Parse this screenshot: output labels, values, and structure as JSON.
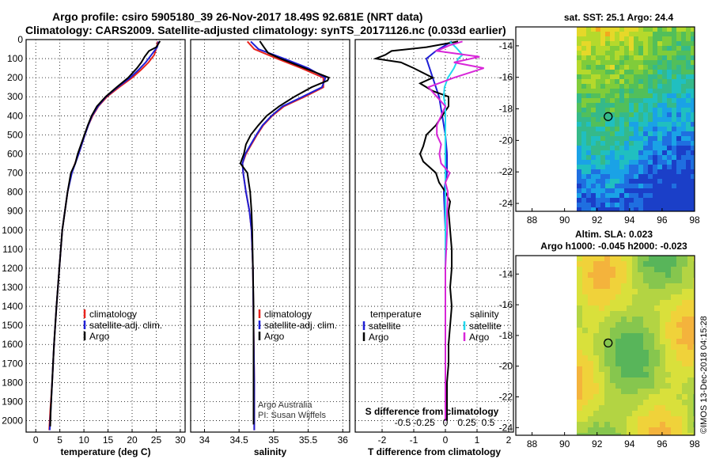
{
  "header": {
    "line1": "Argo profile: csiro 5905180_39 26-Nov-2017 18.49S 92.681E (NRT data)",
    "line2": "Climatology: CARS2009. Satellite-adjusted climatology: synTS_20171126.nc (0.033d earlier)"
  },
  "colors": {
    "climatology": "#e8231c",
    "satellite": "#1f1fd6",
    "argo": "#000000",
    "sat_salinity": "#22d8ee",
    "argo_salinity_diff": "#d826d8"
  },
  "depth_ticks": [
    "0",
    "100",
    "200",
    "300",
    "400",
    "500",
    "600",
    "700",
    "800",
    "900",
    "1000",
    "1100",
    "1200",
    "1300",
    "1400",
    "1500",
    "1600",
    "1700",
    "1800",
    "1900",
    "2000"
  ],
  "chart_data": [
    {
      "type": "line",
      "id": "temperature",
      "xlabel": "temperature (deg C)",
      "xlim": [
        -2,
        31
      ],
      "ylim": [
        2060,
        0
      ],
      "xticks": [
        "0",
        "5",
        "10",
        "15",
        "20",
        "25",
        "30"
      ],
      "legend": {
        "climatology": "climatology",
        "satellite": "satellite-adj. clim.",
        "argo": "Argo"
      },
      "series": [
        {
          "name": "climatology",
          "depth": [
            10,
            40,
            80,
            120,
            160,
            200,
            250,
            300,
            350,
            400,
            450,
            500,
            600,
            700,
            800,
            1000,
            1200,
            1400,
            1600,
            1800,
            1950,
            2050
          ],
          "values": [
            25.3,
            25.1,
            24.6,
            23.4,
            21.8,
            20.0,
            17.3,
            14.8,
            13.0,
            11.8,
            10.9,
            10.2,
            8.9,
            7.4,
            6.6,
            5.5,
            4.9,
            4.3,
            3.8,
            3.4,
            3.0,
            2.8
          ]
        },
        {
          "name": "satellite",
          "depth": [
            10,
            40,
            80,
            120,
            160,
            200,
            250,
            300,
            350,
            400,
            450,
            500,
            600,
            700,
            800,
            1000,
            1200,
            1400,
            1600,
            1800,
            1950,
            2050
          ],
          "values": [
            25.5,
            25.2,
            24.0,
            22.8,
            21.3,
            19.6,
            17.0,
            14.6,
            12.9,
            11.7,
            10.9,
            10.2,
            8.9,
            7.5,
            6.6,
            5.5,
            4.9,
            4.3,
            3.8,
            3.4,
            3.1,
            2.9
          ]
        },
        {
          "name": "argo",
          "depth": [
            8,
            40,
            60,
            90,
            120,
            150,
            200,
            250,
            300,
            350,
            400,
            450,
            500,
            600,
            650,
            700,
            800,
            1000,
            1200,
            1400,
            1600,
            1800,
            1950,
            2030
          ],
          "values": [
            25.8,
            25.0,
            23.5,
            22.6,
            21.9,
            21.0,
            19.2,
            16.8,
            14.5,
            12.7,
            11.6,
            10.8,
            10.1,
            8.7,
            8.2,
            7.3,
            6.6,
            5.5,
            4.9,
            4.3,
            3.8,
            3.4,
            3.1,
            3.0
          ]
        }
      ]
    },
    {
      "type": "line",
      "id": "salinity",
      "xlabel": "salinity",
      "xlim": [
        33.8,
        36.1
      ],
      "ylim": [
        2060,
        0
      ],
      "xticks": [
        "34",
        "34.5",
        "35",
        "35.5",
        "36"
      ],
      "legend": {
        "climatology": "climatology",
        "satellite": "satellite-adj. clim.",
        "argo": "Argo"
      },
      "annotation": [
        "Argo Australia",
        "PI: Susan Wijffels"
      ],
      "series": [
        {
          "name": "climatology",
          "depth": [
            10,
            50,
            100,
            150,
            200,
            250,
            300,
            350,
            400,
            450,
            500,
            550,
            600,
            650,
            700,
            800,
            900,
            1000,
            1200,
            1500,
            1800,
            2050
          ],
          "values": [
            34.62,
            34.72,
            35.05,
            35.4,
            35.72,
            35.72,
            35.45,
            35.15,
            34.98,
            34.85,
            34.76,
            34.68,
            34.6,
            34.55,
            34.56,
            34.6,
            34.65,
            34.68,
            34.7,
            34.71,
            34.72,
            34.72
          ]
        },
        {
          "name": "satellite",
          "depth": [
            10,
            50,
            100,
            150,
            200,
            250,
            300,
            350,
            400,
            450,
            500,
            550,
            600,
            650,
            700,
            800,
            900,
            1000,
            1200,
            1500,
            1800,
            2050
          ],
          "values": [
            34.67,
            34.78,
            35.15,
            35.5,
            35.75,
            35.7,
            35.42,
            35.13,
            34.97,
            34.84,
            34.75,
            34.67,
            34.59,
            34.55,
            34.56,
            34.6,
            34.65,
            34.68,
            34.7,
            34.71,
            34.72,
            34.72
          ]
        },
        {
          "name": "argo",
          "depth": [
            8,
            40,
            70,
            100,
            150,
            200,
            215,
            250,
            300,
            350,
            400,
            450,
            500,
            550,
            600,
            650,
            700,
            750,
            800,
            900,
            1000,
            1200,
            1400,
            1600,
            1800,
            2020
          ],
          "values": [
            34.8,
            34.86,
            34.92,
            35.1,
            35.45,
            35.8,
            35.78,
            35.55,
            35.3,
            35.08,
            34.9,
            34.78,
            34.67,
            34.6,
            34.57,
            34.52,
            34.62,
            34.64,
            34.66,
            34.68,
            34.69,
            34.7,
            34.71,
            34.71,
            34.71,
            34.71
          ]
        }
      ]
    },
    {
      "type": "line",
      "id": "difference",
      "xlabel": "T difference from climatology",
      "xlim": [
        -2.85,
        2.15
      ],
      "ylim": [
        2060,
        0
      ],
      "xticks": [
        "-2",
        "-1",
        "0",
        "1",
        "2"
      ],
      "sxlabel": "S difference from climatology",
      "sxticks": [
        "-0.5",
        "-0.25",
        "0",
        "0.25",
        "0.5"
      ],
      "legend": {
        "temperature": "temperature",
        "salinity": "salinity",
        "satellite": "satellite",
        "argo": "Argo"
      },
      "series": [
        {
          "name": "temperature-satellite",
          "depth": [
            10,
            60,
            100,
            150,
            200,
            250,
            300,
            400,
            500,
            600,
            700,
            800,
            1000,
            1200,
            1400,
            1600,
            1800,
            2000
          ],
          "values": [
            0.2,
            -0.3,
            -0.6,
            -0.5,
            -0.4,
            -0.3,
            -0.2,
            -0.1,
            0.0,
            0.05,
            0.05,
            -0.05,
            0.0,
            0.0,
            0.0,
            0.0,
            0.0,
            0.0
          ]
        },
        {
          "name": "temperature-argo",
          "depth": [
            10,
            40,
            60,
            80,
            100,
            120,
            150,
            200,
            230,
            270,
            300,
            350,
            400,
            450,
            500,
            560,
            600,
            640,
            700,
            750,
            800,
            850,
            900,
            1000,
            1100,
            1200,
            1300,
            1400,
            1500,
            1600,
            1700,
            1800,
            1900,
            2000
          ],
          "values": [
            0.4,
            -0.6,
            -1.7,
            -1.9,
            -2.2,
            -1.4,
            -1.0,
            -0.4,
            -0.8,
            -0.4,
            0.1,
            0.1,
            -0.1,
            -0.3,
            -0.6,
            -0.7,
            -0.8,
            -0.7,
            -0.3,
            -0.2,
            0.0,
            0.15,
            0.1,
            0.15,
            0.2,
            0.2,
            0.15,
            0.2,
            0.15,
            0.1,
            0.1,
            0.05,
            0.05,
            0.05
          ]
        },
        {
          "name": "salinity-satellite",
          "depth": [
            10,
            40,
            80,
            100,
            150,
            200,
            250,
            300,
            350,
            400,
            500,
            600,
            800,
            1000,
            1500,
            2000
          ],
          "values": [
            0.05,
            0.12,
            0.2,
            0.15,
            0.1,
            0.03,
            -0.01,
            -0.02,
            0.0,
            0.0,
            0.0,
            0.0,
            0.0,
            0.0,
            0.0,
            0.0
          ]
        },
        {
          "name": "salinity-argo",
          "depth": [
            10,
            30,
            60,
            90,
            120,
            150,
            200,
            250,
            300,
            350,
            400,
            450,
            500,
            550,
            600,
            650,
            700,
            750,
            800,
            900,
            1000,
            1200,
            1400,
            1500,
            1600,
            2000
          ],
          "values": [
            0.2,
            0.05,
            -0.1,
            0.4,
            0.1,
            0.45,
            0.1,
            -0.2,
            -0.1,
            0.0,
            -0.05,
            -0.1,
            -0.1,
            -0.05,
            -0.07,
            -0.05,
            0.05,
            0.0,
            0.03,
            0.02,
            0.02,
            0.0,
            0.0,
            0.0,
            0.0,
            0.0
          ]
        }
      ]
    },
    {
      "type": "heatmap",
      "id": "sst-map",
      "title": "sat. SST: 25.1 Argo: 24.4",
      "xlim": [
        87,
        98
      ],
      "ylim": [
        -24.5,
        -12.8
      ],
      "xticks": [
        "88",
        "90",
        "92",
        "94",
        "96",
        "98"
      ],
      "yticks": [
        "-14",
        "-16",
        "-18",
        "-20",
        "-22",
        "-24"
      ],
      "marker": {
        "lon": 92.681,
        "lat": -18.49
      }
    },
    {
      "type": "heatmap",
      "id": "sla-map",
      "title": "Altim. SLA: 0.023",
      "subtitle": "Argo h1000: -0.045 h2000: -0.023",
      "xlim": [
        87,
        98
      ],
      "ylim": [
        -24.5,
        -12.8
      ],
      "xticks": [
        "88",
        "90",
        "92",
        "94",
        "96",
        "98"
      ],
      "yticks": [
        "-14",
        "-16",
        "-18",
        "-20",
        "-22",
        "-24"
      ],
      "marker": {
        "lon": 92.681,
        "lat": -18.49
      }
    }
  ],
  "footer": {
    "credit": "©IMOS 13-Dec-2018 04:15:28"
  }
}
